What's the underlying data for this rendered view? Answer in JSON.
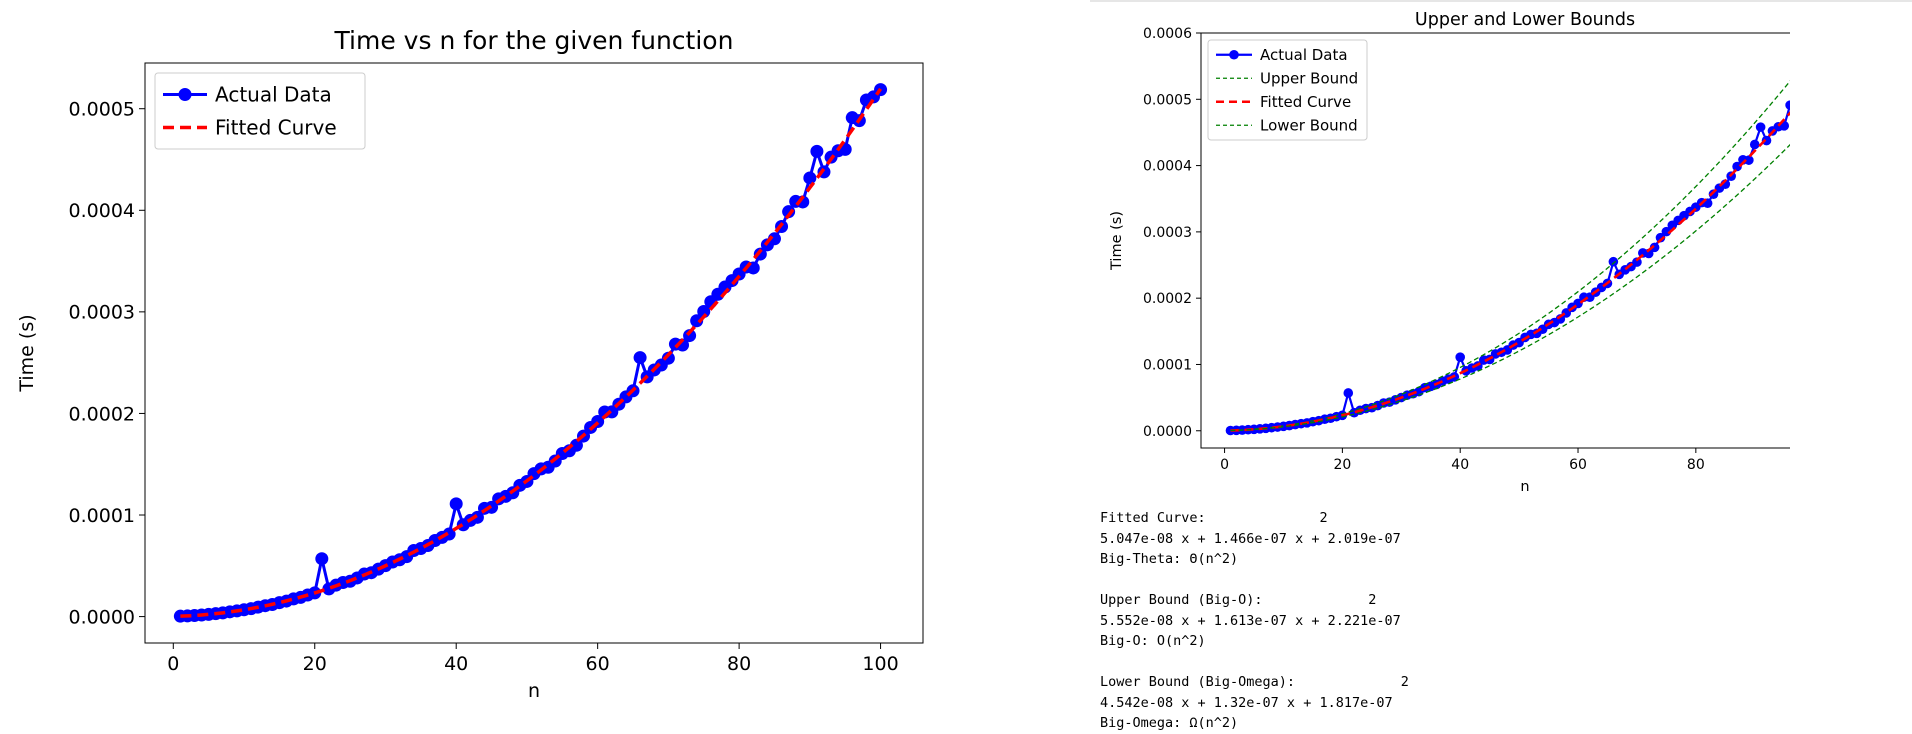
{
  "chart_data": [
    {
      "type": "line",
      "title": "Time vs n for the given function",
      "xlabel": "n",
      "ylabel": "Time (s)",
      "xlim": [
        -4,
        106
      ],
      "ylim": [
        -2.6e-05,
        0.000545
      ],
      "x_ticks": [
        0,
        20,
        40,
        60,
        80,
        100
      ],
      "x_tick_labels": [
        "0",
        "20",
        "40",
        "60",
        "80",
        "100"
      ],
      "y_ticks": [
        0,
        0.0001,
        0.0002,
        0.0003,
        0.0004,
        0.0005
      ],
      "y_tick_labels": [
        "0.0000",
        "0.0001",
        "0.0002",
        "0.0003",
        "0.0004",
        "0.0005"
      ],
      "grid": false,
      "legend_position": "upper-left",
      "legend": [
        "Actual Data",
        "Fitted Curve"
      ],
      "fit_coefficients": [
        5.047e-08,
        1.466e-07,
        2.019e-07
      ],
      "outliers": [
        [
          21,
          5.7e-05
        ],
        [
          40,
          0.000111
        ],
        [
          66,
          0.000255
        ],
        [
          91,
          0.000458
        ]
      ],
      "series": [
        {
          "name": "Actual Data",
          "style": "line-with-markers",
          "color": "#0000ff",
          "x_start": 1,
          "x_end": 100
        },
        {
          "name": "Fitted Curve",
          "style": "dashed",
          "color": "#ff0000",
          "x_start": 1,
          "x_end": 100
        }
      ]
    },
    {
      "type": "line",
      "title": "Upper and Lower Bounds",
      "xlabel": "n",
      "ylabel": "Time (s)",
      "xlim": [
        -4,
        106
      ],
      "ylim": [
        -2.6e-05,
        0.0006
      ],
      "x_ticks": [
        0,
        20,
        40,
        60,
        80,
        100
      ],
      "x_tick_labels": [
        "0",
        "20",
        "40",
        "60",
        "80",
        "100"
      ],
      "y_ticks": [
        0,
        0.0001,
        0.0002,
        0.0003,
        0.0004,
        0.0005,
        0.0006
      ],
      "y_tick_labels": [
        "0.0000",
        "0.0001",
        "0.0002",
        "0.0003",
        "0.0004",
        "0.0005",
        "0.0006"
      ],
      "grid": false,
      "legend_position": "upper-left",
      "legend": [
        "Actual Data",
        "Upper Bound",
        "Fitted Curve",
        "Lower Bound"
      ],
      "series": [
        {
          "name": "Actual Data",
          "style": "line-with-markers",
          "color": "#0000ff"
        },
        {
          "name": "Upper Bound",
          "style": "dashed-thin",
          "color": "#008000",
          "coefficients": [
            5.552e-08,
            1.613e-07,
            2.221e-07
          ]
        },
        {
          "name": "Fitted Curve",
          "style": "dashed",
          "color": "#ff0000",
          "coefficients": [
            5.047e-08,
            1.466e-07,
            2.019e-07
          ]
        },
        {
          "name": "Lower Bound",
          "style": "dashed-thin",
          "color": "#008000",
          "coefficients": [
            4.542e-08,
            1.32e-07,
            1.817e-07
          ]
        }
      ]
    }
  ],
  "output_lines": [
    "Fitted Curve:              2",
    "5.047e-08 x + 1.466e-07 x + 2.019e-07",
    "Big-Theta: Θ(n^2)",
    "",
    "Upper Bound (Big-O):             2",
    "5.552e-08 x + 1.613e-07 x + 2.221e-07",
    "Big-O: O(n^2)",
    "",
    "Lower Bound (Big-Omega):             2",
    "4.542e-08 x + 1.32e-07 x + 1.817e-07",
    "Big-Omega: Ω(n^2)"
  ]
}
